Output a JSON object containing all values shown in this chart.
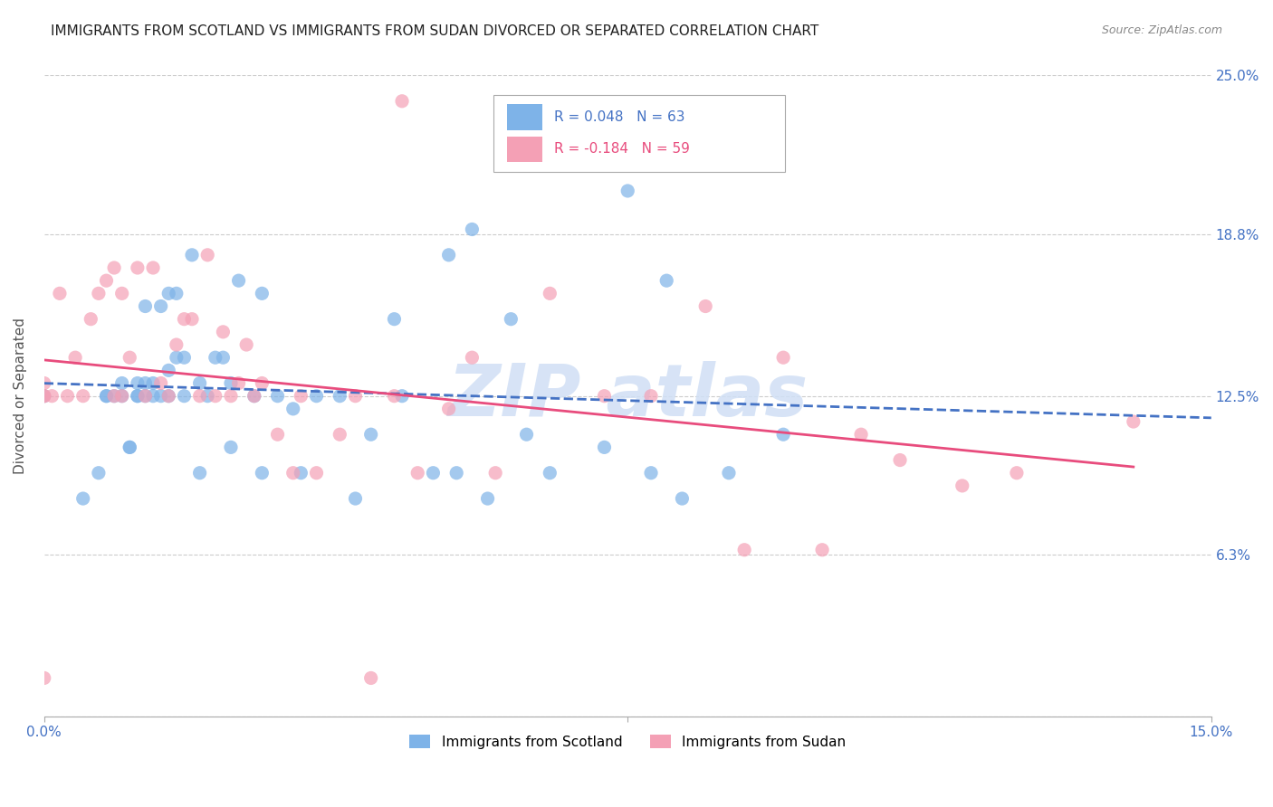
{
  "title": "IMMIGRANTS FROM SCOTLAND VS IMMIGRANTS FROM SUDAN DIVORCED OR SEPARATED CORRELATION CHART",
  "source": "Source: ZipAtlas.com",
  "ylabel": "Divorced or Separated",
  "xmin": 0.0,
  "xmax": 0.15,
  "ymin": 0.0,
  "ymax": 0.25,
  "yticks": [
    0.0,
    0.063,
    0.125,
    0.188,
    0.25
  ],
  "ytick_labels": [
    "",
    "6.3%",
    "12.5%",
    "18.8%",
    "25.0%"
  ],
  "legend_r_scotland": "R = 0.048",
  "legend_n_scotland": "N = 63",
  "legend_r_sudan": "R = -0.184",
  "legend_n_sudan": "N = 59",
  "color_scotland": "#7eb3e8",
  "color_sudan": "#f4a0b5",
  "color_scotland_line": "#4472c4",
  "color_sudan_line": "#e84c7d",
  "color_axis_labels": "#4472c4",
  "color_title": "#222222",
  "color_gridline": "#cccccc",
  "color_watermark": "#d0dff5",
  "scotland_x": [
    0.0,
    0.005,
    0.007,
    0.008,
    0.008,
    0.009,
    0.01,
    0.01,
    0.011,
    0.011,
    0.012,
    0.012,
    0.012,
    0.013,
    0.013,
    0.013,
    0.014,
    0.014,
    0.015,
    0.015,
    0.016,
    0.016,
    0.016,
    0.017,
    0.017,
    0.018,
    0.018,
    0.019,
    0.02,
    0.02,
    0.021,
    0.022,
    0.023,
    0.024,
    0.024,
    0.025,
    0.027,
    0.028,
    0.028,
    0.03,
    0.032,
    0.033,
    0.035,
    0.038,
    0.04,
    0.042,
    0.045,
    0.046,
    0.05,
    0.052,
    0.053,
    0.055,
    0.057,
    0.06,
    0.062,
    0.065,
    0.072,
    0.075,
    0.078,
    0.08,
    0.082,
    0.088,
    0.095
  ],
  "scotland_y": [
    0.125,
    0.085,
    0.095,
    0.125,
    0.125,
    0.125,
    0.125,
    0.13,
    0.105,
    0.105,
    0.125,
    0.125,
    0.13,
    0.125,
    0.13,
    0.16,
    0.125,
    0.13,
    0.125,
    0.16,
    0.125,
    0.135,
    0.165,
    0.14,
    0.165,
    0.125,
    0.14,
    0.18,
    0.095,
    0.13,
    0.125,
    0.14,
    0.14,
    0.105,
    0.13,
    0.17,
    0.125,
    0.095,
    0.165,
    0.125,
    0.12,
    0.095,
    0.125,
    0.125,
    0.085,
    0.11,
    0.155,
    0.125,
    0.095,
    0.18,
    0.095,
    0.19,
    0.085,
    0.155,
    0.11,
    0.095,
    0.105,
    0.205,
    0.095,
    0.17,
    0.085,
    0.095,
    0.11
  ],
  "sudan_x": [
    0.0,
    0.0,
    0.0,
    0.0,
    0.001,
    0.002,
    0.003,
    0.004,
    0.005,
    0.006,
    0.007,
    0.008,
    0.009,
    0.009,
    0.01,
    0.01,
    0.011,
    0.012,
    0.013,
    0.014,
    0.015,
    0.016,
    0.017,
    0.018,
    0.019,
    0.02,
    0.021,
    0.022,
    0.023,
    0.024,
    0.025,
    0.026,
    0.027,
    0.028,
    0.03,
    0.032,
    0.033,
    0.035,
    0.038,
    0.04,
    0.042,
    0.045,
    0.046,
    0.048,
    0.052,
    0.055,
    0.058,
    0.065,
    0.072,
    0.078,
    0.085,
    0.09,
    0.095,
    0.1,
    0.105,
    0.11,
    0.118,
    0.125,
    0.14
  ],
  "sudan_y": [
    0.125,
    0.125,
    0.13,
    0.015,
    0.125,
    0.165,
    0.125,
    0.14,
    0.125,
    0.155,
    0.165,
    0.17,
    0.125,
    0.175,
    0.125,
    0.165,
    0.14,
    0.175,
    0.125,
    0.175,
    0.13,
    0.125,
    0.145,
    0.155,
    0.155,
    0.125,
    0.18,
    0.125,
    0.15,
    0.125,
    0.13,
    0.145,
    0.125,
    0.13,
    0.11,
    0.095,
    0.125,
    0.095,
    0.11,
    0.125,
    0.015,
    0.125,
    0.24,
    0.095,
    0.12,
    0.14,
    0.095,
    0.165,
    0.125,
    0.125,
    0.16,
    0.065,
    0.14,
    0.065,
    0.11,
    0.1,
    0.09,
    0.095,
    0.115
  ]
}
